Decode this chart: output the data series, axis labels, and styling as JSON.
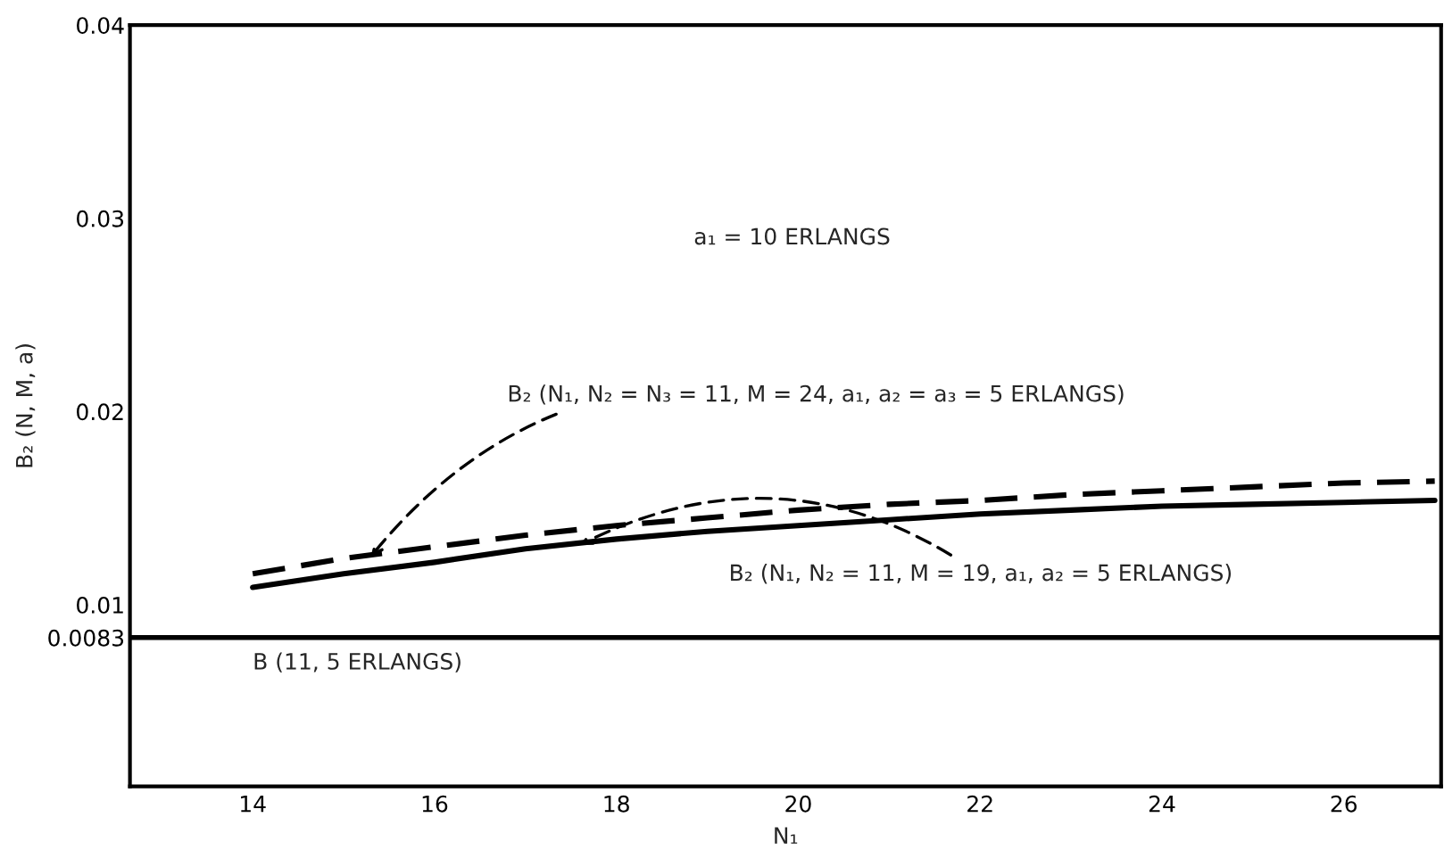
{
  "chart_data": {
    "type": "line",
    "xlabel": "N₁",
    "ylabel": "B₂ (N, M, a)",
    "x": [
      14,
      15,
      16,
      17,
      18,
      19,
      20,
      21,
      22,
      23,
      24,
      25,
      26,
      27
    ],
    "series": [
      {
        "color": "#000000",
        "line_style": "dashed",
        "values": [
          0.0116,
          0.0124,
          0.013,
          0.0136,
          0.0141,
          0.0145,
          0.0149,
          0.0152,
          0.0154,
          0.0157,
          0.0159,
          0.0161,
          0.0163,
          0.0164
        ]
      },
      {
        "color": "#000000",
        "line_style": "solid",
        "values": [
          0.0109,
          0.0116,
          0.0122,
          0.0129,
          0.0134,
          0.0138,
          0.0141,
          0.0144,
          0.0147,
          0.0149,
          0.0151,
          0.0152,
          0.0153,
          0.0154
        ]
      }
    ],
    "xlim": [
      12.65,
      27.07
    ],
    "ylim": [
      0.0006,
      0.04
    ],
    "xticks": [
      14,
      16,
      18,
      20,
      22,
      24,
      26
    ],
    "yticks": [
      0.0083,
      0.01,
      0.02,
      0.03,
      0.04
    ],
    "ref_lines": [
      {
        "axis": "y",
        "value": 0.0083,
        "label": "B (11, 5 ERLANGS)",
        "color": "#000000"
      }
    ],
    "annotations": [
      "a₁ = 10 ERLANGS",
      {
        "text": "B₂ (N₁, N₂ = N₃ = 11, M = 24, a₁, a₂ = a₃ = 5 ERLANGS)",
        "x": 15.3,
        "y": 0.0125
      },
      {
        "text": "B₂ (N₁, N₂ = 11, M = 19, a₁, a₂ = 5 ERLANGS)",
        "x": 17.6,
        "y": 0.0131
      }
    ],
    "grid": false,
    "legend": false
  }
}
